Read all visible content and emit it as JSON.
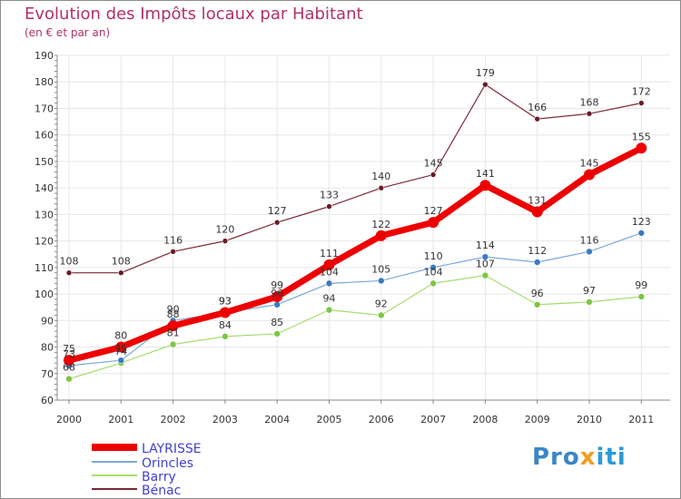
{
  "title": "Evolution des Impôts locaux par Habitant",
  "subtitle": "(en € et par an)",
  "logo": {
    "p1": "Pro",
    "p2": "x",
    "p3": "iti"
  },
  "colors": {
    "grid": "#e6e6e6",
    "axis": "#888888",
    "label": "#333333",
    "legend_text": "#4040d0"
  },
  "chart_data": {
    "type": "line",
    "title": "Evolution des Impôts locaux par Habitant",
    "ylabel": "(en € et par an)",
    "xlabel": "",
    "x": [
      "2000",
      "2001",
      "2002",
      "2003",
      "2004",
      "2005",
      "2006",
      "2007",
      "2008",
      "2009",
      "2010",
      "2011"
    ],
    "ylim": [
      60,
      190
    ],
    "yticks": [
      60,
      70,
      80,
      90,
      100,
      110,
      120,
      130,
      140,
      150,
      160,
      170,
      180,
      190
    ],
    "grid": true,
    "legend_position": "bottom-left",
    "series": [
      {
        "name": "Bénac",
        "color": "#7a2a35",
        "marker": "#6a1a25",
        "width": 1.2,
        "msize": 3,
        "values": [
          108,
          108,
          116,
          120,
          127,
          133,
          140,
          145,
          179,
          166,
          168,
          172
        ]
      },
      {
        "name": "Barry",
        "color": "#a6dc70",
        "marker": "#7cc642",
        "width": 1.2,
        "msize": 3.5,
        "values": [
          68,
          74,
          81,
          84,
          85,
          94,
          92,
          104,
          107,
          96,
          97,
          99
        ]
      },
      {
        "name": "Orincles",
        "color": "#7aa8d8",
        "marker": "#3a7ac0",
        "width": 1.2,
        "msize": 3.5,
        "values": [
          73,
          75,
          90,
          93,
          96,
          104,
          105,
          110,
          114,
          112,
          116,
          123
        ]
      },
      {
        "name": "LAYRISSE",
        "color": "#ee0000",
        "marker": "#ee0000",
        "width": 7,
        "msize": 6,
        "values": [
          75,
          80,
          88,
          93,
          99,
          111,
          122,
          127,
          141,
          131,
          145,
          155
        ]
      }
    ],
    "legend": [
      "LAYRISSE",
      "Orincles",
      "Barry",
      "Bénac"
    ]
  }
}
